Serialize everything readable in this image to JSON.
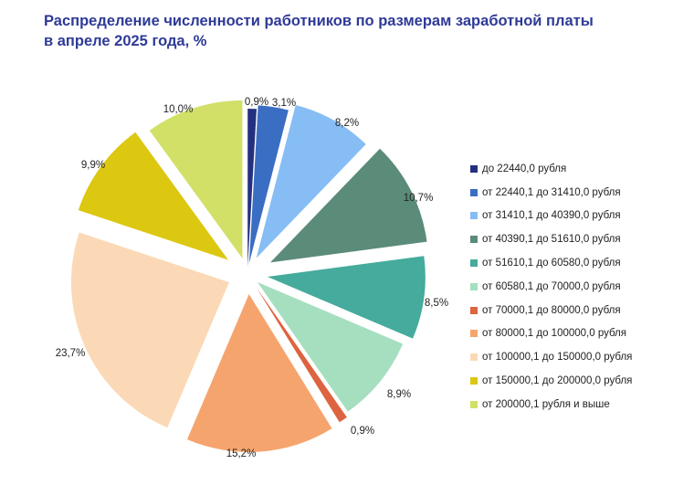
{
  "title_line1": "Распределение численности работников по размерам заработной платы",
  "title_line2": "в апреле 2025 года, %",
  "chart_data": {
    "type": "pie",
    "title": "Распределение численности работников по размерам заработной платы в апреле 2025 года, %",
    "exploded": true,
    "legend_position": "right",
    "slices": [
      {
        "label": "до 22440,0 рубля",
        "value": 0.9,
        "value_label": "0,9%",
        "color": "#24307f"
      },
      {
        "label": "от 22440,1 до 31410,0 рубля",
        "value": 3.1,
        "value_label": "3,1%",
        "color": "#3a6ec2"
      },
      {
        "label": "от 31410,1 до 40390,0 рубля",
        "value": 8.2,
        "value_label": "8,2%",
        "color": "#86bdf5"
      },
      {
        "label": "от 40390,1 до 51610,0 рубля",
        "value": 10.7,
        "value_label": "10,7%",
        "color": "#5b8b79"
      },
      {
        "label": "от 51610,1 до 60580,0 рубля",
        "value": 8.5,
        "value_label": "8,5%",
        "color": "#45ab9c"
      },
      {
        "label": "от 60580,1 до 70000,0 рубля",
        "value": 8.9,
        "value_label": "8,9%",
        "color": "#a5dfc0"
      },
      {
        "label": "от 70000,1 до 80000,0 рубля",
        "value": 0.9,
        "value_label": "0,9%",
        "color": "#dd6440"
      },
      {
        "label": "от 80000,1 до 100000,0 рубля",
        "value": 15.2,
        "value_label": "15,2%",
        "color": "#f6a46e"
      },
      {
        "label": "от 100000,1 до 150000,0 рубля",
        "value": 23.7,
        "value_label": "23,7%",
        "color": "#fbd9b6"
      },
      {
        "label": "от 150000,1 до 200000,0 рубля",
        "value": 9.9,
        "value_label": "9,9%",
        "color": "#dcc711"
      },
      {
        "label": "от 200000,1 рубля и выше",
        "value": 10.0,
        "value_label": "10,0%",
        "color": "#d2e068"
      }
    ]
  }
}
